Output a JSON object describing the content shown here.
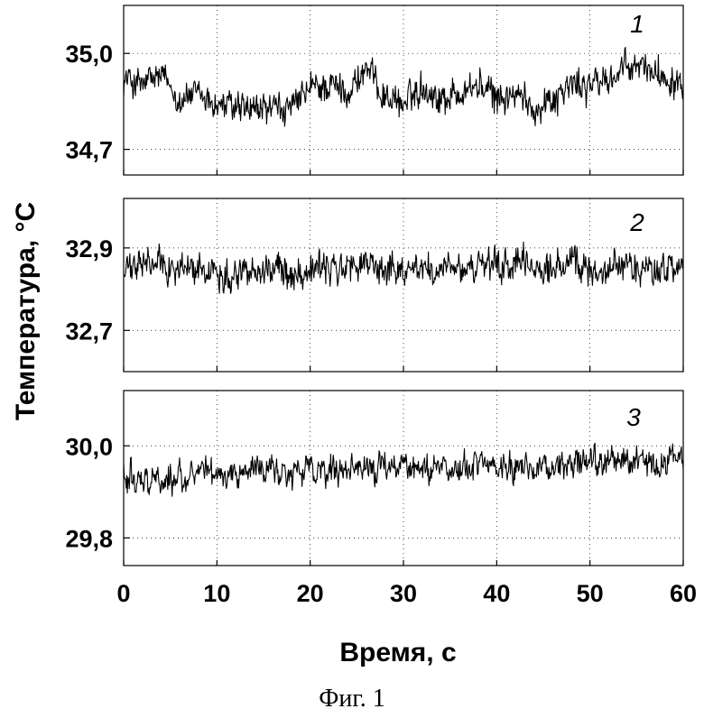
{
  "chart_data": [
    {
      "type": "line",
      "panel_label": "1",
      "xlim": [
        0,
        60
      ],
      "ylim": [
        34.62,
        35.15
      ],
      "yticks": [
        {
          "value": 35.0,
          "label": "35,0"
        },
        {
          "value": 34.7,
          "label": "34,7"
        }
      ],
      "series": [
        {
          "x": [
            0,
            2,
            4,
            6,
            8,
            10,
            12,
            14,
            16,
            18,
            20,
            22,
            24,
            26,
            28,
            30,
            32,
            34,
            36,
            38,
            40,
            42,
            44,
            46,
            48,
            50,
            52,
            54,
            56,
            58,
            60
          ],
          "y": [
            34.92,
            34.9,
            34.93,
            34.86,
            34.87,
            34.84,
            34.83,
            34.82,
            34.83,
            34.82,
            34.89,
            34.9,
            34.88,
            34.95,
            34.87,
            34.84,
            34.9,
            34.86,
            34.88,
            34.9,
            34.86,
            34.87,
            34.83,
            34.86,
            34.9,
            34.9,
            34.92,
            34.95,
            34.96,
            34.93,
            34.92
          ],
          "noise": 0.045
        }
      ]
    },
    {
      "type": "line",
      "panel_label": "2",
      "xlim": [
        0,
        60
      ],
      "ylim": [
        32.6,
        33.02
      ],
      "yticks": [
        {
          "value": 32.9,
          "label": "32,9"
        },
        {
          "value": 32.7,
          "label": "32,7"
        }
      ],
      "series": [
        {
          "x": [
            0,
            2,
            4,
            6,
            8,
            10,
            12,
            14,
            16,
            18,
            20,
            22,
            24,
            26,
            28,
            30,
            32,
            34,
            36,
            38,
            40,
            42,
            44,
            46,
            48,
            50,
            52,
            54,
            56,
            58,
            60
          ],
          "y": [
            32.84,
            32.86,
            32.86,
            32.85,
            32.85,
            32.84,
            32.84,
            32.85,
            32.85,
            32.84,
            32.85,
            32.85,
            32.85,
            32.86,
            32.85,
            32.85,
            32.85,
            32.84,
            32.85,
            32.85,
            32.85,
            32.86,
            32.85,
            32.85,
            32.86,
            32.85,
            32.85,
            32.86,
            32.85,
            32.85,
            32.85
          ],
          "noise": 0.035
        }
      ]
    },
    {
      "type": "line",
      "panel_label": "3",
      "xlim": [
        0,
        60
      ],
      "ylim": [
        29.74,
        30.12
      ],
      "yticks": [
        {
          "value": 30.0,
          "label": "30,0"
        },
        {
          "value": 29.8,
          "label": "29,8"
        }
      ],
      "series": [
        {
          "x": [
            0,
            2,
            4,
            6,
            8,
            10,
            12,
            14,
            16,
            18,
            20,
            22,
            24,
            26,
            28,
            30,
            32,
            34,
            36,
            38,
            40,
            42,
            44,
            46,
            48,
            50,
            52,
            54,
            56,
            58,
            60
          ],
          "y": [
            29.94,
            29.93,
            29.93,
            29.93,
            29.94,
            29.94,
            29.94,
            29.95,
            29.95,
            29.94,
            29.95,
            29.94,
            29.94,
            29.95,
            29.95,
            29.96,
            29.95,
            29.96,
            29.95,
            29.96,
            29.95,
            29.96,
            29.96,
            29.95,
            29.96,
            29.96,
            29.96,
            29.97,
            29.96,
            29.97,
            29.97
          ],
          "noise": 0.028
        }
      ]
    }
  ],
  "x_axis": {
    "ticks": [
      {
        "value": 0,
        "label": "0"
      },
      {
        "value": 10,
        "label": "10"
      },
      {
        "value": 20,
        "label": "20"
      },
      {
        "value": 30,
        "label": "30"
      },
      {
        "value": 40,
        "label": "40"
      },
      {
        "value": 50,
        "label": "50"
      },
      {
        "value": 60,
        "label": "60"
      }
    ],
    "label": "Время, с"
  },
  "y_axis": {
    "label": "Температура, °С"
  },
  "grid": "dotted",
  "caption": "Фиг. 1"
}
